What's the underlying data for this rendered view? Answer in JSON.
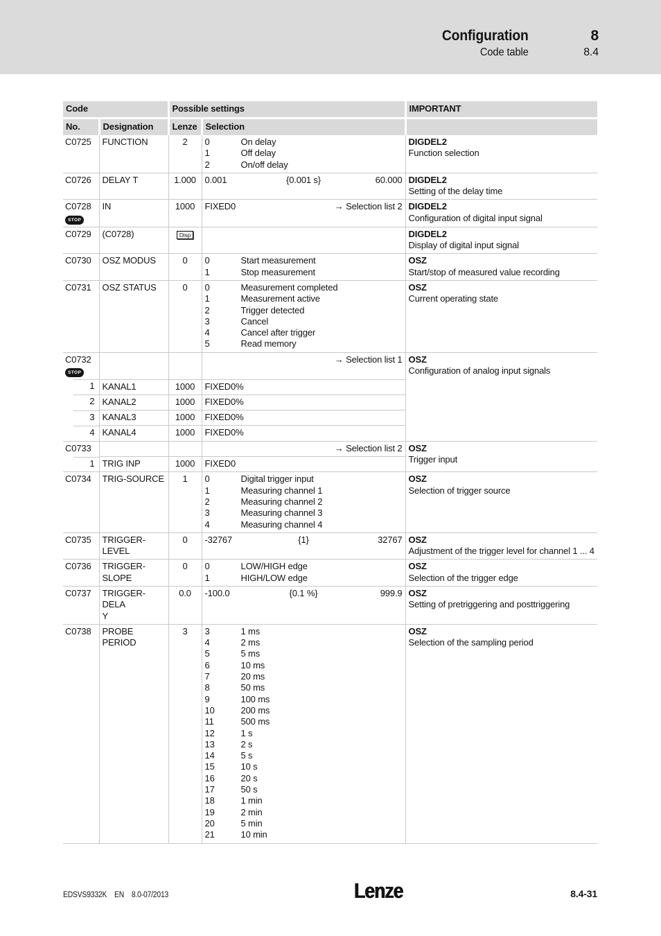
{
  "page_header": {
    "title": "Configuration",
    "chapter": "8",
    "subtitle": "Code table",
    "section": "8.4"
  },
  "table": {
    "headers": {
      "code": "Code",
      "possible_settings": "Possible settings",
      "important": "IMPORTANT",
      "no": "No.",
      "designation": "Designation",
      "lenze": "Lenze",
      "selection": "Selection"
    },
    "badges": {
      "stop": "STOP"
    },
    "rows": [
      {
        "code": "C0725",
        "designation": "FUNCTION",
        "lenze": {
          "text": "2"
        },
        "selection": {
          "type": "options",
          "options": [
            [
              "0",
              "On delay"
            ],
            [
              "1",
              "Off delay"
            ],
            [
              "2",
              "On/off delay"
            ]
          ]
        },
        "important": {
          "title": "DIGDEL2",
          "desc": "Function selection"
        }
      },
      {
        "code": "C0726",
        "designation": "DELAY T",
        "lenze": {
          "text": "1.000"
        },
        "selection": {
          "type": "range",
          "min": "0.001",
          "unit": "{0.001 s}",
          "max": "60.000"
        },
        "important": {
          "title": "DIGDEL2",
          "desc": "Setting of the delay time"
        }
      },
      {
        "code": "C0728",
        "stop": true,
        "designation": "IN",
        "lenze": {
          "text": "1000"
        },
        "selection": {
          "type": "text",
          "value": "FIXED0",
          "note": "→ Selection list 2"
        },
        "important": {
          "title": "DIGDEL2",
          "desc": "Configuration of digital input signal"
        }
      },
      {
        "code": "C0729",
        "designation": "(C0728)",
        "lenze": {
          "badge": "Disp"
        },
        "selection": null,
        "important": {
          "title": "DIGDEL2",
          "desc": "Display of digital input signal"
        }
      },
      {
        "code": "C0730",
        "designation": "OSZ MODUS",
        "lenze": {
          "text": "0"
        },
        "selection": {
          "type": "options",
          "options": [
            [
              "0",
              "Start measurement"
            ],
            [
              "1",
              "Stop measurement"
            ]
          ]
        },
        "important": {
          "title": "OSZ",
          "desc": "Start/stop of measured value recording"
        }
      },
      {
        "code": "C0731",
        "designation": "OSZ STATUS",
        "lenze": {
          "text": "0"
        },
        "selection": {
          "type": "options",
          "options": [
            [
              "0",
              "Measurement completed"
            ],
            [
              "1",
              "Measurement active"
            ],
            [
              "2",
              "Trigger detected"
            ],
            [
              "3",
              "Cancel"
            ],
            [
              "4",
              "Cancel after trigger"
            ],
            [
              "5",
              "Read memory"
            ]
          ]
        },
        "important": {
          "title": "OSZ",
          "desc": "Current operating state"
        }
      },
      {
        "code": "C0732",
        "stop": true,
        "designation": "",
        "lenze": null,
        "selection": {
          "type": "note",
          "note": "→ Selection list 1"
        },
        "important": {
          "title": "OSZ",
          "desc": "Configuration of analog input signals",
          "span": 5
        }
      },
      {
        "sub": true,
        "no": "1",
        "designation": "KANAL1",
        "lenze": {
          "text": "1000"
        },
        "selection": {
          "type": "text",
          "value": "FIXED0%"
        }
      },
      {
        "sub": true,
        "no": "2",
        "designation": "KANAL2",
        "lenze": {
          "text": "1000"
        },
        "selection": {
          "type": "text",
          "value": "FIXED0%"
        }
      },
      {
        "sub": true,
        "no": "3",
        "designation": "KANAL3",
        "lenze": {
          "text": "1000"
        },
        "selection": {
          "type": "text",
          "value": "FIXED0%"
        }
      },
      {
        "sub": true,
        "no": "4",
        "designation": "KANAL4",
        "lenze": {
          "text": "1000"
        },
        "selection": {
          "type": "text",
          "value": "FIXED0%"
        }
      },
      {
        "code": "C0733",
        "designation": "",
        "lenze": null,
        "selection": {
          "type": "note",
          "note": "→ Selection list 2"
        },
        "important": {
          "title": "OSZ",
          "desc": "Trigger input",
          "span": 2
        }
      },
      {
        "sub": true,
        "no": "1",
        "designation": "TRIG INP",
        "lenze": {
          "text": "1000"
        },
        "selection": {
          "type": "text",
          "value": "FIXED0"
        }
      },
      {
        "code": "C0734",
        "designation": "TRIG-SOURCE",
        "lenze": {
          "text": "1"
        },
        "selection": {
          "type": "options",
          "options": [
            [
              "0",
              "Digital trigger input"
            ],
            [
              "1",
              "Measuring channel 1"
            ],
            [
              "2",
              "Measuring channel 2"
            ],
            [
              "3",
              "Measuring channel 3"
            ],
            [
              "4",
              "Measuring channel 4"
            ]
          ]
        },
        "important": {
          "title": "OSZ",
          "desc": "Selection of trigger source"
        }
      },
      {
        "code": "C0735",
        "designation": "TRIGGER-LEVEL",
        "lenze": {
          "text": "0"
        },
        "selection": {
          "type": "range",
          "min": "-32767",
          "unit": "{1}",
          "max": "32767"
        },
        "important": {
          "title": "OSZ",
          "desc": "Adjustment of the trigger level for channel 1 ... 4"
        }
      },
      {
        "code": "C0736",
        "designation": "TRIGGER-SLOPE",
        "lenze": {
          "text": "0"
        },
        "selection": {
          "type": "options",
          "options": [
            [
              "0",
              "LOW/HIGH edge"
            ],
            [
              "1",
              "HIGH/LOW edge"
            ]
          ]
        },
        "important": {
          "title": "OSZ",
          "desc": "Selection of the trigger edge"
        }
      },
      {
        "code": "C0737",
        "designation": "TRIGGER-DELA\nY",
        "lenze": {
          "text": "0.0"
        },
        "selection": {
          "type": "range",
          "min": "-100.0",
          "unit": "{0.1 %}",
          "max": "999.9"
        },
        "important": {
          "title": "OSZ",
          "desc": "Setting of pretriggering and posttriggering"
        }
      },
      {
        "code": "C0738",
        "designation": "PROBE PERIOD",
        "lenze": {
          "text": "3"
        },
        "selection": {
          "type": "options",
          "options": [
            [
              "3",
              "1 ms"
            ],
            [
              "4",
              "2 ms"
            ],
            [
              "5",
              "5 ms"
            ],
            [
              "6",
              "10 ms"
            ],
            [
              "7",
              "20 ms"
            ],
            [
              "8",
              "50 ms"
            ],
            [
              "9",
              "100 ms"
            ],
            [
              "10",
              "200 ms"
            ],
            [
              "11",
              "500 ms"
            ],
            [
              "12",
              "1 s"
            ],
            [
              "13",
              "2 s"
            ],
            [
              "14",
              "5 s"
            ],
            [
              "15",
              "10 s"
            ],
            [
              "16",
              "20 s"
            ],
            [
              "17",
              "50 s"
            ],
            [
              "18",
              "1 min"
            ],
            [
              "19",
              "2 min"
            ],
            [
              "20",
              "5 min"
            ],
            [
              "21",
              "10 min"
            ]
          ]
        },
        "important": {
          "title": "OSZ",
          "desc": "Selection of the sampling period"
        }
      }
    ]
  },
  "footer": {
    "doc_id": "EDSVS9332K",
    "lang": "EN",
    "version": "8.0-07/2013",
    "logo": "Lenze",
    "page": "8.4-31"
  }
}
